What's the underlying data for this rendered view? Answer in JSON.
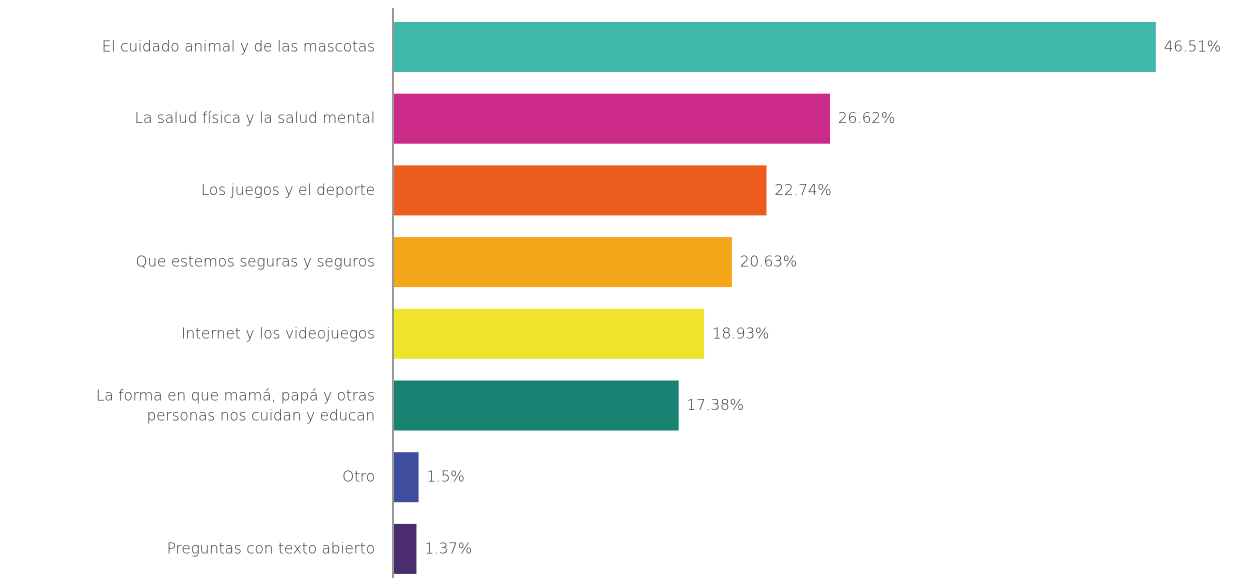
{
  "chart_data": {
    "type": "bar",
    "orientation": "horizontal",
    "categories": [
      "El cuidado animal y de las mascotas",
      "La salud física y la salud mental",
      "Los juegos y el deporte",
      "Que estemos seguras y seguros",
      "Internet y los videojuegos",
      "La forma en que mamá, papá y otras\npersonas nos cuidan y educan",
      "Otro",
      "Preguntas con texto abierto"
    ],
    "values": [
      46.51,
      26.62,
      22.74,
      20.63,
      18.93,
      17.38,
      1.5,
      1.37
    ],
    "value_labels": [
      "46.51%",
      "26.62%",
      "22.74%",
      "20.63%",
      "18.93%",
      "17.38%",
      "1.5%",
      "1.37%"
    ],
    "colors": [
      "#3db8aa",
      "#cc2a88",
      "#eb5c1e",
      "#f5a618",
      "#efe42a",
      "#188273",
      "#3f4d9e",
      "#4b2c6e"
    ]
  }
}
